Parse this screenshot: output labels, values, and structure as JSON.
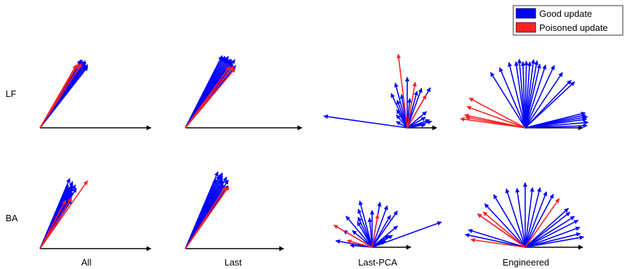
{
  "row_labels": [
    "LF",
    "BA"
  ],
  "column_labels": [
    "All",
    "Last",
    "Last-PCA",
    "Engineered"
  ],
  "legend": {
    "good": {
      "label": "Good update",
      "color": "#0000ff"
    },
    "poisoned": {
      "label": "Poisoned update",
      "color": "#ff2020"
    }
  },
  "panels": [
    {
      "row": 0,
      "col": 0,
      "good_angles_deg": [
        52,
        53,
        54,
        55,
        55,
        56,
        57,
        58,
        59
      ],
      "good_lengths": [
        0.96,
        0.98,
        0.95,
        0.97,
        0.99,
        1.0,
        0.97,
        0.99,
        0.98
      ],
      "poisoned_angles_deg": [
        57,
        59,
        60
      ],
      "poisoned_lengths": [
        0.95,
        0.92,
        0.9
      ]
    },
    {
      "row": 0,
      "col": 1,
      "good_angles_deg": [
        51,
        53,
        54,
        55,
        56,
        57,
        58,
        59,
        60,
        61,
        62,
        63
      ],
      "good_lengths": [
        0.95,
        0.94,
        1.0,
        0.96,
        0.98,
        0.97,
        0.95,
        0.99,
        0.96,
        0.97,
        0.95,
        0.96
      ],
      "poisoned_angles_deg": [
        50,
        52,
        54
      ],
      "poisoned_lengths": [
        0.92,
        0.93,
        0.9
      ]
    },
    {
      "row": 1,
      "col": 0,
      "good_angles_deg": [
        57,
        59,
        60,
        61,
        62,
        63,
        64,
        65,
        66,
        67
      ],
      "good_lengths": [
        0.7,
        0.85,
        0.78,
        0.88,
        0.82,
        0.86,
        0.9,
        0.8,
        0.84,
        0.92
      ],
      "poisoned_angles_deg": [
        55,
        58,
        62
      ],
      "poisoned_lengths": [
        1.0,
        0.72,
        0.66
      ]
    },
    {
      "row": 1,
      "col": 1,
      "good_angles_deg": [
        56,
        58,
        59,
        60,
        61,
        62,
        63,
        64,
        65,
        66,
        67
      ],
      "good_lengths": [
        0.9,
        0.96,
        0.88,
        0.98,
        0.92,
        0.93,
        0.97,
        1.0,
        0.96,
        0.9,
        0.99
      ],
      "poisoned_angles_deg": [
        55,
        57
      ],
      "poisoned_lengths": [
        0.9,
        0.88
      ]
    },
    {
      "row": 0,
      "col": 2,
      "good_angles_deg": [
        172,
        105,
        110,
        115,
        90,
        70,
        60,
        40,
        30,
        20,
        15,
        10,
        120,
        130,
        100,
        85,
        75,
        150
      ],
      "good_lengths": [
        1.0,
        0.55,
        0.35,
        0.45,
        0.6,
        0.5,
        0.55,
        0.3,
        0.25,
        0.28,
        0.3,
        0.22,
        0.25,
        0.2,
        0.4,
        0.35,
        0.45,
        0.15
      ],
      "poisoned_angles_deg": [
        97,
        60,
        80
      ],
      "poisoned_lengths": [
        0.88,
        0.45,
        0.55
      ]
    },
    {
      "row": 0,
      "col": 3,
      "good_angles_deg": [
        122,
        113,
        104,
        98,
        95,
        92,
        89,
        86,
        83,
        80,
        77,
        72,
        65,
        56,
        46,
        43,
        14,
        12,
        10,
        8,
        5,
        2
      ],
      "good_lengths": [
        0.95,
        0.95,
        0.98,
        0.97,
        1.0,
        0.96,
        0.97,
        0.96,
        1.0,
        0.99,
        0.95,
        0.96,
        1.0,
        0.97,
        0.96,
        0.98,
        0.9,
        0.9,
        0.92,
        0.9,
        0.92,
        0.9
      ],
      "poisoned_angles_deg": [
        152,
        160,
        168,
        170,
        172
      ],
      "poisoned_lengths": [
        0.92,
        0.9,
        0.9,
        0.88,
        0.95
      ]
    },
    {
      "row": 1,
      "col": 2,
      "good_angles_deg": [
        20,
        40,
        35,
        55,
        60,
        70,
        80,
        90,
        95,
        105,
        110,
        115,
        120,
        130,
        140,
        150,
        170,
        175,
        30,
        25
      ],
      "good_lengths": [
        1.0,
        0.45,
        0.28,
        0.6,
        0.5,
        0.6,
        0.62,
        0.5,
        0.4,
        0.65,
        0.55,
        0.45,
        0.4,
        0.55,
        0.35,
        0.45,
        0.5,
        0.3,
        0.32,
        0.2
      ],
      "poisoned_angles_deg": [
        150,
        80,
        165
      ],
      "poisoned_lengths": [
        0.6,
        0.45,
        0.35
      ]
    },
    {
      "row": 1,
      "col": 3,
      "good_angles_deg": [
        168,
        163,
        145,
        133,
        121,
        108,
        98,
        90,
        83,
        76,
        69,
        62,
        42,
        38,
        32,
        27,
        20,
        14,
        10
      ],
      "good_lengths": [
        0.95,
        0.92,
        0.9,
        0.92,
        0.95,
        0.95,
        0.92,
        1.0,
        0.93,
        0.95,
        0.92,
        0.93,
        0.9,
        0.88,
        0.9,
        0.92,
        0.9,
        0.88,
        0.92
      ],
      "poisoned_angles_deg": [
        140,
        145,
        172,
        55
      ],
      "poisoned_lengths": [
        0.85,
        0.9,
        0.85,
        0.92
      ]
    }
  ]
}
